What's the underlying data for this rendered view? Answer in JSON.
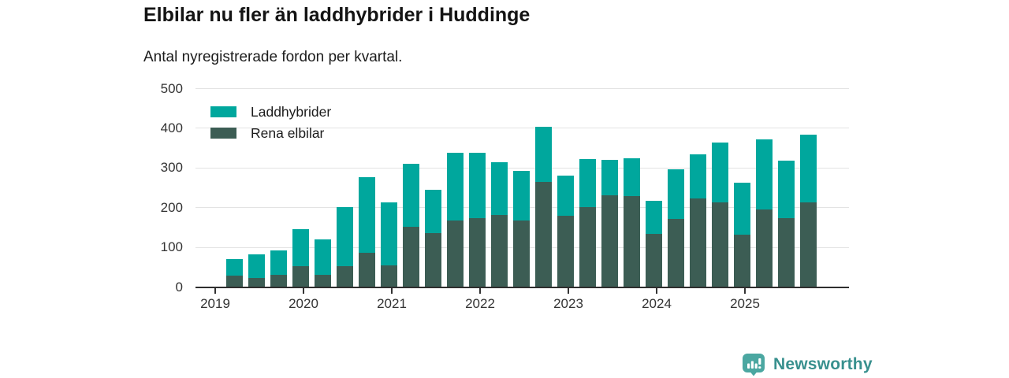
{
  "title": "Elbilar nu fler än laddhybrider i Huddinge",
  "subtitle": "Antal nyregistrerade fordon per kvartal.",
  "legend": [
    {
      "label": "Laddhybrider",
      "color": "#00a79d"
    },
    {
      "label": "Rena elbilar",
      "color": "#3c5d54"
    }
  ],
  "footer": {
    "brand": "Newsworthy"
  },
  "colors": {
    "laddhybrider": "#00a79d",
    "rena_elbilar": "#3c5d54",
    "gridline": "#e3e3e3",
    "axis": "#2e2e2e",
    "brand_text": "#38908e",
    "brand_badge": "#4ba7a1"
  },
  "chart_data": {
    "type": "bar",
    "stacked": true,
    "title": "Elbilar nu fler än laddhybrider i Huddinge",
    "subtitle": "Antal nyregistrerade fordon per kvartal.",
    "x": [
      "2019 Q2",
      "2019 Q3",
      "2019 Q4",
      "2020 Q1",
      "2020 Q2",
      "2020 Q3",
      "2020 Q4",
      "2021 Q1",
      "2021 Q2",
      "2021 Q3",
      "2021 Q4",
      "2022 Q1",
      "2022 Q2",
      "2022 Q3",
      "2022 Q4",
      "2023 Q1",
      "2023 Q2",
      "2023 Q3",
      "2023 Q4",
      "2024 Q1",
      "2024 Q2",
      "2024 Q3",
      "2024 Q4",
      "2025 Q1",
      "2025 Q2",
      "2025 Q3",
      "2025 Q4"
    ],
    "series": [
      {
        "name": "Rena elbilar",
        "color": "#3c5d54",
        "values": [
          28,
          22,
          30,
          52,
          31,
          53,
          87,
          54,
          152,
          135,
          168,
          173,
          181,
          168,
          265,
          180,
          202,
          232,
          230,
          134,
          171,
          223,
          214,
          132,
          196,
          173,
          213
        ]
      },
      {
        "name": "Laddhybrider",
        "color": "#00a79d",
        "values": [
          42,
          61,
          62,
          94,
          89,
          148,
          190,
          160,
          158,
          110,
          171,
          166,
          134,
          124,
          139,
          100,
          120,
          88,
          95,
          83,
          125,
          112,
          150,
          131,
          177,
          145,
          172
        ]
      }
    ],
    "ylim": [
      0,
      500
    ],
    "yticks": [
      0,
      100,
      200,
      300,
      400,
      500
    ],
    "xticks": [
      "2019",
      "2020",
      "2021",
      "2022",
      "2023",
      "2024",
      "2025"
    ],
    "xlabel": "",
    "ylabel": "",
    "grid": true,
    "legend_position": "top-left"
  }
}
